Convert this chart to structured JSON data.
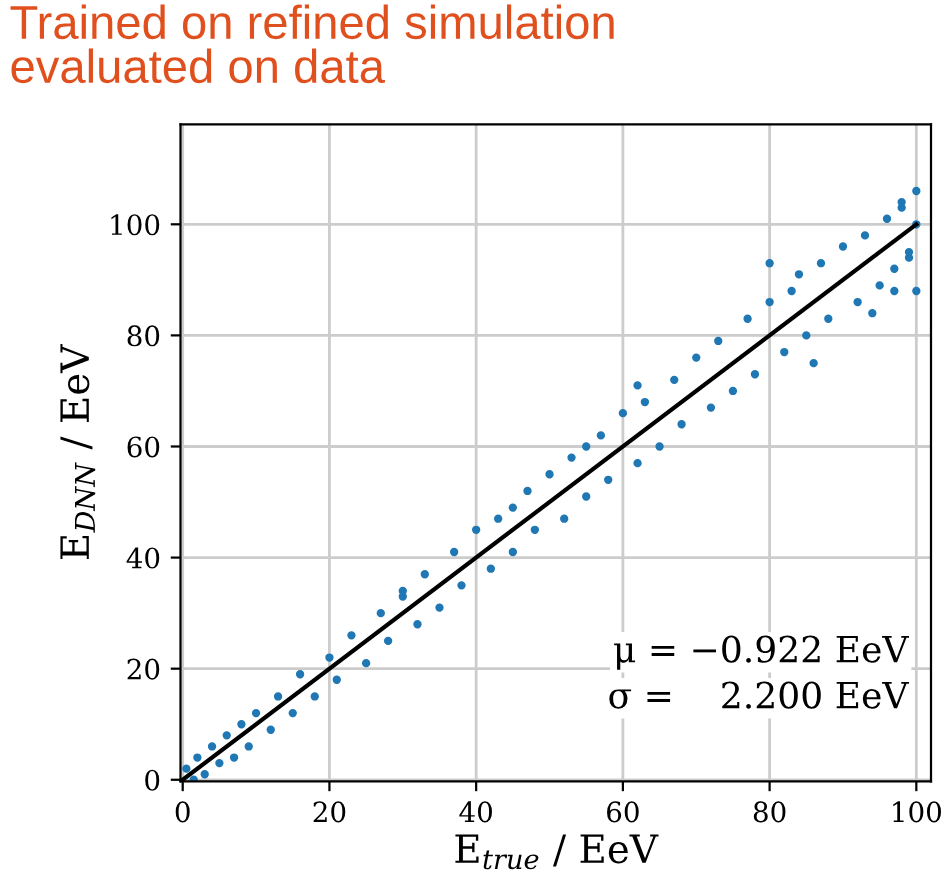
{
  "chart_data": {
    "type": "scatter",
    "title": "Trained on refined simulation\nevaluated on data",
    "xlabel": "E$_{true}$ / EeV",
    "ylabel": "E$_{DNN}$ / EeV",
    "xlim": [
      -0.3,
      102
    ],
    "ylim": [
      -0.3,
      118
    ],
    "xticks": [
      0,
      20,
      40,
      60,
      80,
      100
    ],
    "yticks": [
      0,
      20,
      40,
      60,
      80,
      100
    ],
    "grid": true,
    "series": [
      {
        "marker": "circle",
        "color": "#1f77b4",
        "x": [
          0.5,
          1.5,
          2,
          3,
          4,
          5,
          6,
          7,
          8,
          9,
          10,
          12,
          13,
          15,
          16,
          18,
          20,
          21,
          23,
          25,
          27,
          28,
          30,
          32,
          33,
          35,
          37,
          38,
          40,
          42,
          43,
          45,
          47,
          48,
          50,
          52,
          53,
          55,
          57,
          58,
          60,
          62,
          63,
          65,
          67,
          68,
          70,
          72,
          73,
          75,
          77,
          78,
          80,
          82,
          83,
          85,
          87,
          88,
          90,
          92,
          93,
          95,
          96,
          97,
          98,
          99,
          100,
          100,
          100,
          99,
          98,
          80,
          86,
          84,
          62,
          94,
          97,
          55,
          45,
          30
        ],
        "values": [
          2,
          0,
          4,
          1,
          6,
          3,
          8,
          4,
          10,
          6,
          12,
          9,
          15,
          12,
          19,
          15,
          22,
          18,
          26,
          21,
          30,
          25,
          33,
          28,
          37,
          31,
          41,
          35,
          45,
          38,
          47,
          41,
          52,
          45,
          55,
          47,
          58,
          51,
          62,
          54,
          66,
          57,
          68,
          60,
          72,
          64,
          76,
          67,
          79,
          70,
          83,
          73,
          86,
          77,
          88,
          80,
          93,
          83,
          96,
          86,
          98,
          89,
          101,
          92,
          104,
          95,
          106,
          88,
          100,
          94,
          103,
          93,
          75,
          91,
          71,
          84,
          88,
          60,
          49,
          34
        ]
      },
      {
        "type": "line",
        "color": "#000000",
        "x": [
          0,
          100
        ],
        "values": [
          0,
          100
        ]
      }
    ],
    "annotations": [
      "μ = −0.922 EeV",
      "σ =    2.200 EeV"
    ]
  }
}
